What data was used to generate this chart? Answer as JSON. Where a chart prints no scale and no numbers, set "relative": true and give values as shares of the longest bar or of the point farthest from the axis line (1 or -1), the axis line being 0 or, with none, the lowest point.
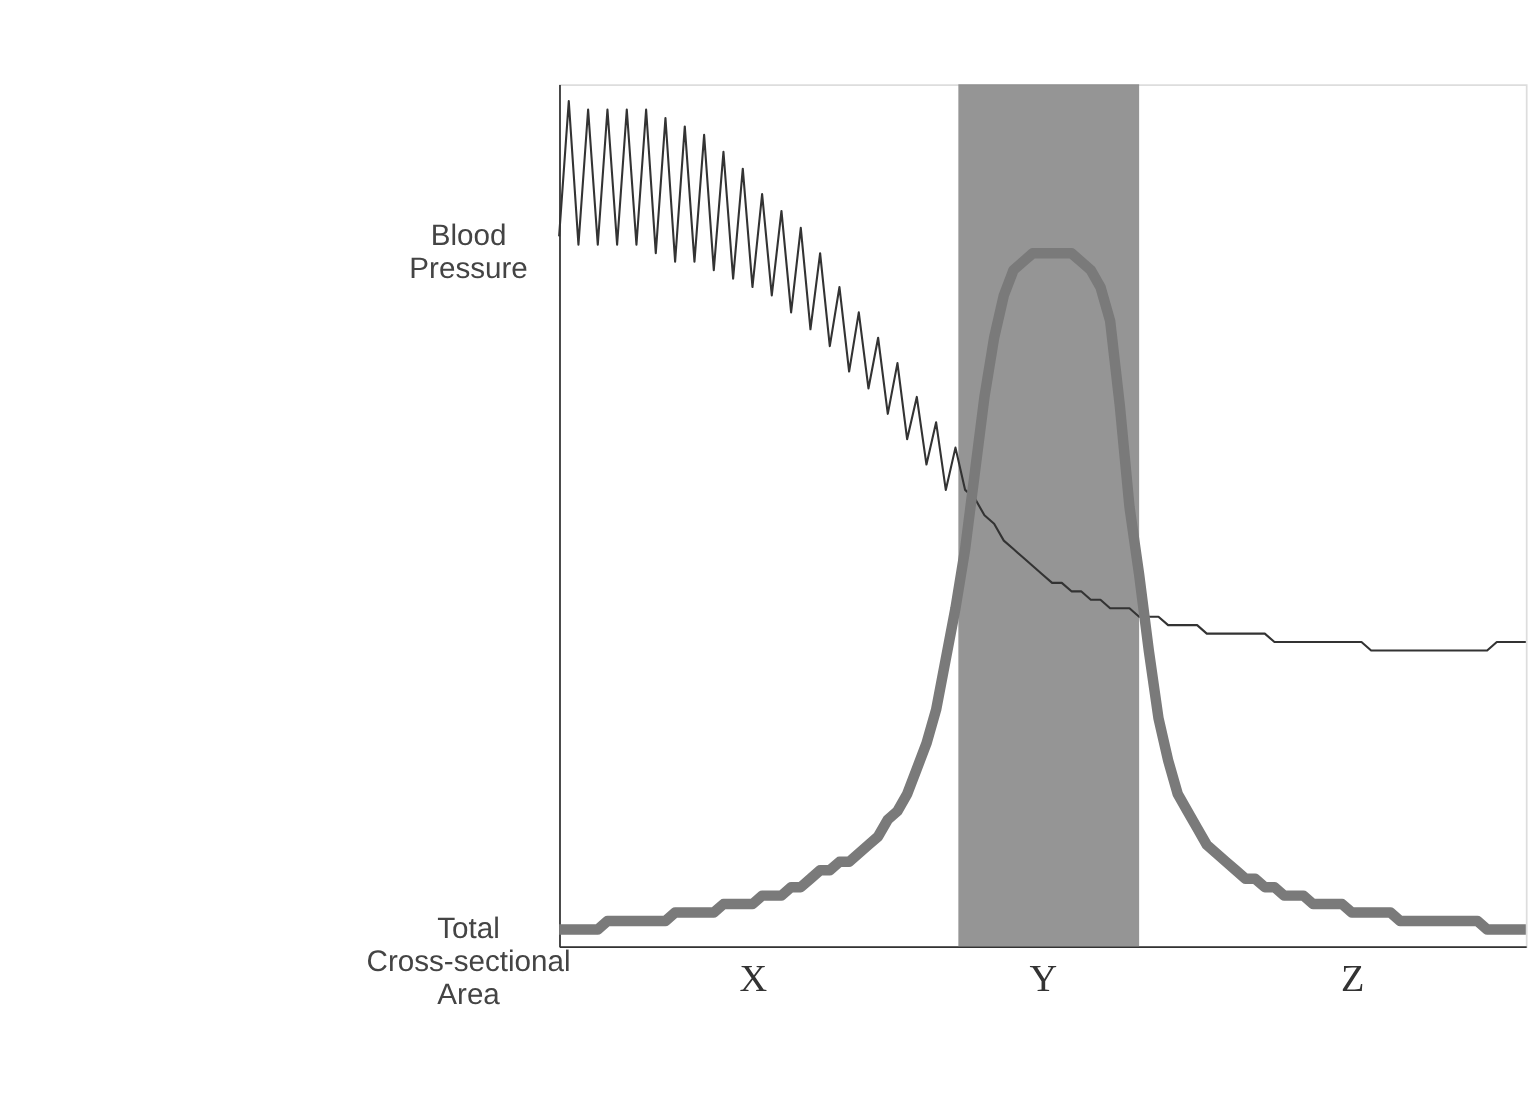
{
  "chart_data": {
    "type": "line",
    "relative": true,
    "grid": false,
    "categories": [
      null,
      null,
      null,
      null,
      null,
      null,
      null,
      null,
      null,
      null,
      null,
      null,
      null,
      null,
      null,
      null,
      null,
      null,
      null,
      null,
      "X",
      null,
      null,
      null,
      null,
      null,
      null,
      null,
      null,
      null,
      null,
      null,
      null,
      null,
      null,
      null,
      null,
      null,
      null,
      null,
      null,
      null,
      null,
      null,
      null,
      null,
      null,
      null,
      null,
      null,
      "Y",
      null,
      null,
      null,
      null,
      null,
      null,
      null,
      null,
      null,
      null,
      null,
      null,
      null,
      null,
      null,
      null,
      null,
      null,
      null,
      null,
      null,
      null,
      null,
      null,
      null,
      null,
      null,
      null,
      null,
      null,
      null,
      "Z",
      null,
      null,
      null,
      null,
      null,
      null,
      null,
      null,
      null,
      null,
      null,
      null,
      null,
      null,
      null,
      null,
      null,
      null
    ],
    "series": [
      {
        "name": "Blood Pressure",
        "color": "#333333",
        "values": [
          0.84,
          1.0,
          0.83,
          0.99,
          0.83,
          0.99,
          0.83,
          0.99,
          0.83,
          0.99,
          0.82,
          0.98,
          0.81,
          0.97,
          0.81,
          0.96,
          0.8,
          0.94,
          0.79,
          0.92,
          0.78,
          0.89,
          0.77,
          0.87,
          0.75,
          0.85,
          0.73,
          0.82,
          0.71,
          0.78,
          0.68,
          0.75,
          0.66,
          0.72,
          0.63,
          0.69,
          0.6,
          0.65,
          0.57,
          0.62,
          0.54,
          0.59,
          0.54,
          0.53,
          0.51,
          0.5,
          0.48,
          0.47,
          0.46,
          0.45,
          0.44,
          0.43,
          0.43,
          0.42,
          0.42,
          0.41,
          0.41,
          0.4,
          0.4,
          0.4,
          0.39,
          0.39,
          0.39,
          0.38,
          0.38,
          0.38,
          0.38,
          0.37,
          0.37,
          0.37,
          0.37,
          0.37,
          0.37,
          0.37,
          0.36,
          0.36,
          0.36,
          0.36,
          0.36,
          0.36,
          0.36,
          0.36,
          0.36,
          0.36,
          0.35,
          0.35,
          0.35,
          0.35,
          0.35,
          0.35,
          0.35,
          0.35,
          0.35,
          0.35,
          0.35,
          0.35,
          0.35,
          0.36,
          0.36,
          0.36,
          0.36
        ]
      },
      {
        "name": "Total Cross-sectional Area",
        "color": "#7a7a7a",
        "values": [
          0.02,
          0.02,
          0.02,
          0.02,
          0.02,
          0.03,
          0.03,
          0.03,
          0.03,
          0.03,
          0.03,
          0.03,
          0.04,
          0.04,
          0.04,
          0.04,
          0.04,
          0.05,
          0.05,
          0.05,
          0.05,
          0.06,
          0.06,
          0.06,
          0.07,
          0.07,
          0.08,
          0.09,
          0.09,
          0.1,
          0.1,
          0.11,
          0.12,
          0.13,
          0.15,
          0.16,
          0.18,
          0.21,
          0.24,
          0.28,
          0.34,
          0.4,
          0.47,
          0.56,
          0.65,
          0.72,
          0.77,
          0.8,
          0.81,
          0.82,
          0.82,
          0.82,
          0.82,
          0.82,
          0.81,
          0.8,
          0.78,
          0.74,
          0.64,
          0.52,
          0.44,
          0.35,
          0.27,
          0.22,
          0.18,
          0.16,
          0.14,
          0.12,
          0.11,
          0.1,
          0.09,
          0.08,
          0.08,
          0.07,
          0.07,
          0.06,
          0.06,
          0.06,
          0.05,
          0.05,
          0.05,
          0.05,
          0.04,
          0.04,
          0.04,
          0.04,
          0.04,
          0.03,
          0.03,
          0.03,
          0.03,
          0.03,
          0.03,
          0.03,
          0.03,
          0.03,
          0.02,
          0.02,
          0.02,
          0.02,
          0.02
        ]
      }
    ]
  }
}
